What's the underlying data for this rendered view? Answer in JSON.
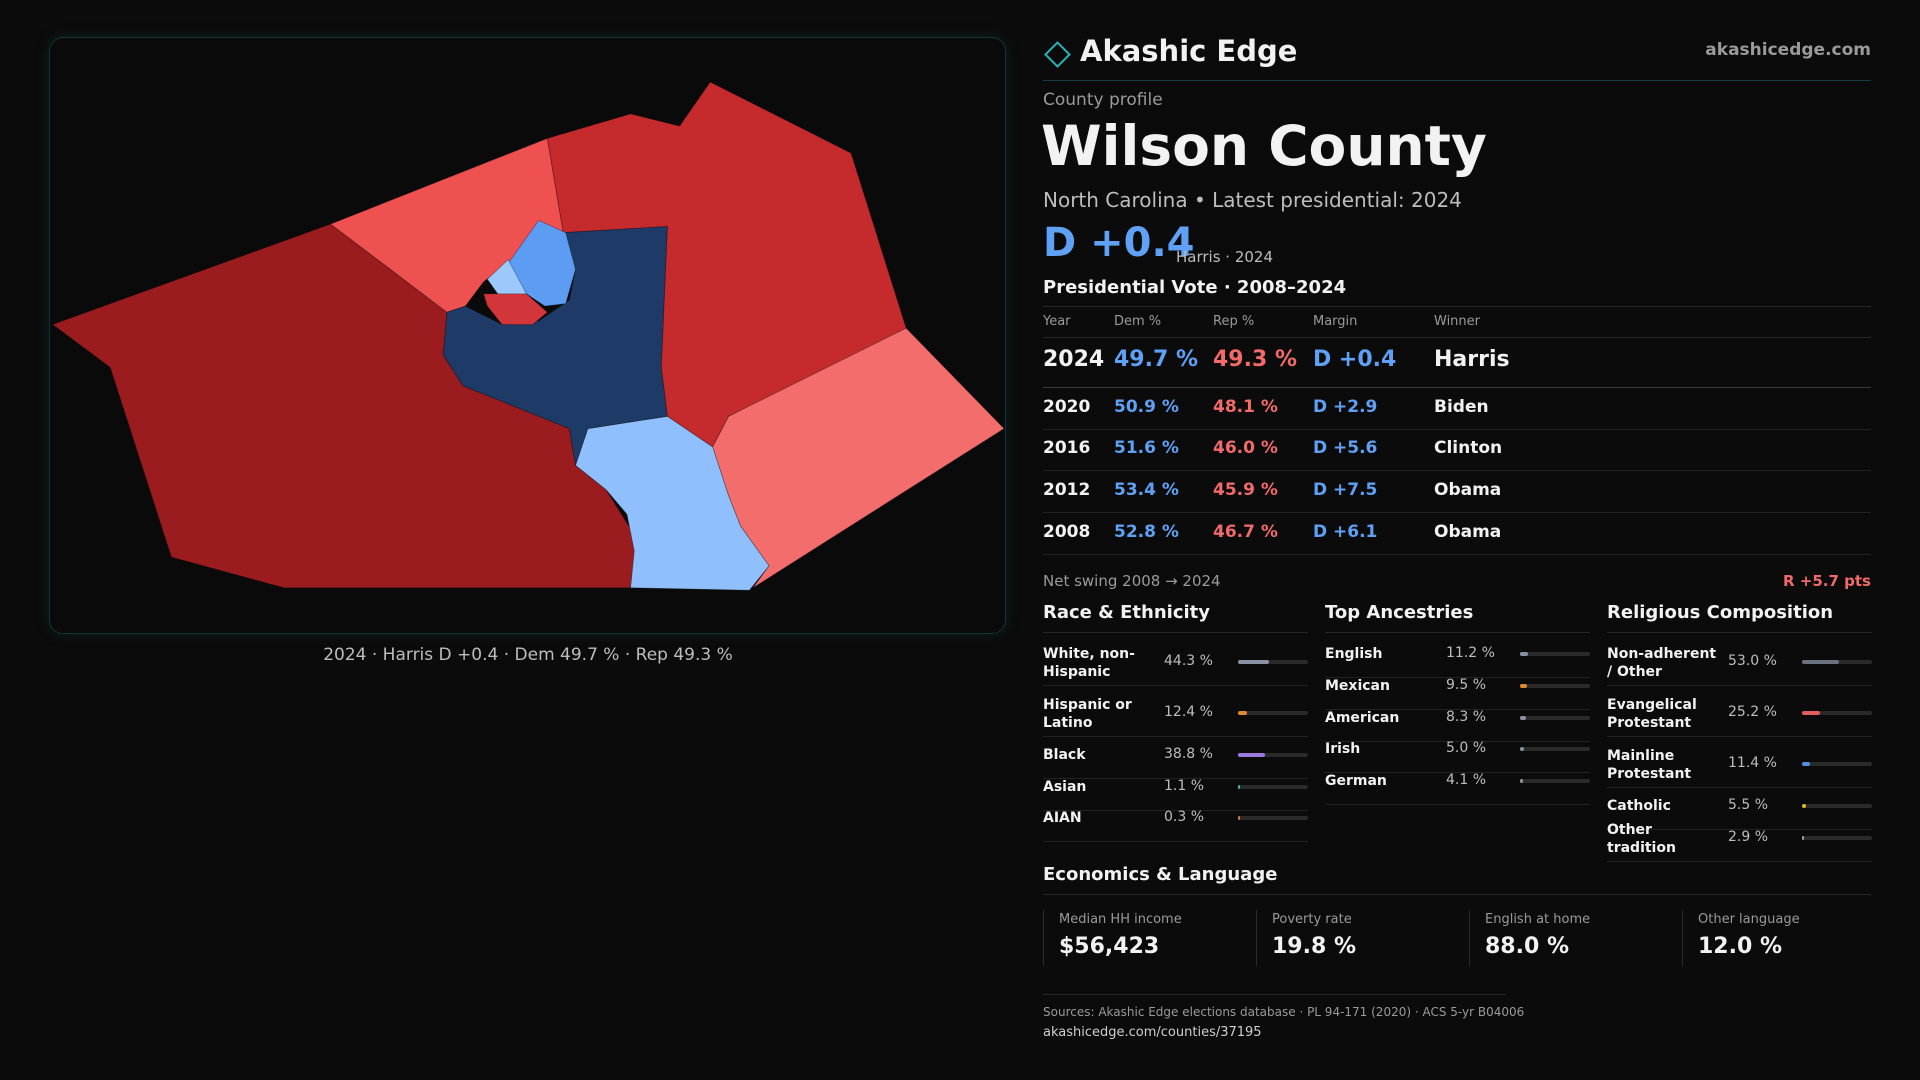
{
  "map": {
    "caption": "2024 · Harris D +0.4 · Dem 49.7 % · Rep 49.3 %"
  },
  "header": {
    "brand": "Akashic Edge",
    "site": "akashicedge.com"
  },
  "profile": {
    "kicker": "County profile",
    "title": "Wilson County",
    "subtitle": "North Carolina • Latest presidential: 2024",
    "margin": "D +0.4",
    "margin_note": "Harris · 2024"
  },
  "vote": {
    "title": "Presidential Vote · 2008–2024",
    "columns": [
      "Year",
      "Dem %",
      "Rep %",
      "Margin",
      "Winner"
    ],
    "rows": [
      [
        "2024",
        "49.7 %",
        "49.3 %",
        "D +0.4",
        "Harris"
      ],
      [
        "2020",
        "50.9 %",
        "48.1 %",
        "D +2.9",
        "Biden"
      ],
      [
        "2016",
        "51.6 %",
        "46.0 %",
        "D +5.6",
        "Clinton"
      ],
      [
        "2012",
        "53.4 %",
        "45.9 %",
        "D +7.5",
        "Obama"
      ],
      [
        "2008",
        "52.8 %",
        "46.7 %",
        "D +6.1",
        "Obama"
      ]
    ],
    "swing_label": "Net swing 2008 → 2024",
    "swing": "R +5.7 pts"
  },
  "panels": [
    {
      "title": "Race & Ethnicity",
      "items": [
        {
          "label": "White, non-Hispanic",
          "value": 44.3,
          "value_label": "44.3 %",
          "color": "#8a93a3"
        },
        {
          "label": "Hispanic or Latino",
          "value": 12.4,
          "value_label": "12.4 %",
          "color": "#e08a2c"
        },
        {
          "label": "Black",
          "value": 38.8,
          "value_label": "38.8 %",
          "color": "#9b7be0"
        },
        {
          "label": "Asian",
          "value": 1.1,
          "value_label": "1.1 %",
          "color": "#4fb3a0"
        },
        {
          "label": "AIAN",
          "value": 0.3,
          "value_label": "0.3 %",
          "color": "#d9734a"
        }
      ]
    },
    {
      "title": "Top Ancestries",
      "items": [
        {
          "label": "English",
          "value": 11.2,
          "value_label": "11.2 %",
          "color": "#8a93a3"
        },
        {
          "label": "Mexican",
          "value": 9.5,
          "value_label": "9.5 %",
          "color": "#e08a2c"
        },
        {
          "label": "American",
          "value": 8.3,
          "value_label": "8.3 %",
          "color": "#8a93a3"
        },
        {
          "label": "Irish",
          "value": 5.0,
          "value_label": "5.0 %",
          "color": "#8a93a3"
        },
        {
          "label": "German",
          "value": 4.1,
          "value_label": "4.1 %",
          "color": "#8a93a3"
        }
      ]
    },
    {
      "title": "Religious Composition",
      "items": [
        {
          "label": "Non-adherent / Other",
          "value": 53.0,
          "value_label": "53.0 %",
          "color": "#6b7280"
        },
        {
          "label": "Evangelical Protestant",
          "value": 25.2,
          "value_label": "25.2 %",
          "color": "#e35d5d"
        },
        {
          "label": "Mainline Protestant",
          "value": 11.4,
          "value_label": "11.4 %",
          "color": "#4f8fe0"
        },
        {
          "label": "Catholic",
          "value": 5.5,
          "value_label": "5.5 %",
          "color": "#e0b62c"
        },
        {
          "label": "Other tradition",
          "value": 2.9,
          "value_label": "2.9 %",
          "color": "#a0a0a0"
        }
      ]
    }
  ],
  "economics": {
    "title": "Economics & Language",
    "cards": [
      {
        "label": "Median HH income",
        "value": "$56,423"
      },
      {
        "label": "Poverty rate",
        "value": "19.8 %"
      },
      {
        "label": "English at home",
        "value": "88.0 %"
      },
      {
        "label": "Other language",
        "value": "12.0 %"
      }
    ]
  },
  "footer": {
    "sources": "Sources: Akashic Edge elections database · PL 94-171 (2020) · ACS 5-yr B04006",
    "url": "akashicedge.com/counties/37195"
  }
}
